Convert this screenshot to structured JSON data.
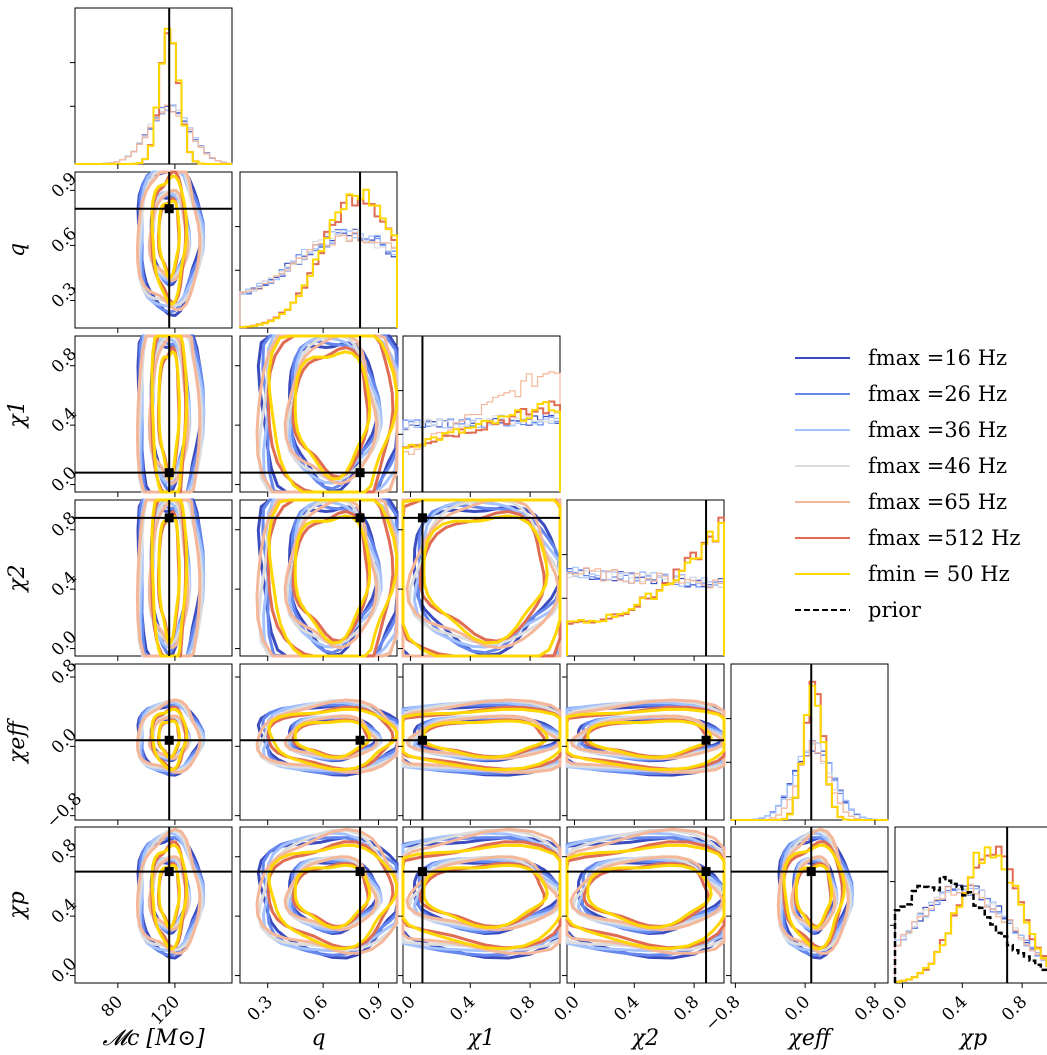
{
  "chart_data": {
    "type": "corner",
    "params": [
      {
        "key": "Mc",
        "label": "𝓜c [M⊙]",
        "range": [
          50,
          160
        ],
        "ticks": [
          80,
          120
        ],
        "truth": 116
      },
      {
        "key": "q",
        "label": "q",
        "range": [
          0.15,
          1.0
        ],
        "ticks": [
          0.3,
          0.6,
          0.9
        ],
        "truth": 0.8
      },
      {
        "key": "chi1",
        "label": "χ1",
        "range": [
          -0.05,
          1.0
        ],
        "ticks": [
          0.0,
          0.4,
          0.8
        ],
        "truth": 0.08
      },
      {
        "key": "chi2",
        "label": "χ2",
        "range": [
          -0.05,
          1.0
        ],
        "ticks": [
          0.0,
          0.4,
          0.8
        ],
        "truth": 0.88
      },
      {
        "key": "chieff",
        "label": "χeff",
        "range": [
          -0.85,
          0.95
        ],
        "ticks": [
          -0.8,
          0.0,
          0.8
        ],
        "truth": 0.07
      },
      {
        "key": "chip",
        "label": "χp",
        "range": [
          -0.05,
          1.0
        ],
        "ticks": [
          0.0,
          0.4,
          0.8
        ],
        "truth": 0.7
      }
    ],
    "series": [
      {
        "name": "fmax =16 Hz",
        "color": "#3a4cc0"
      },
      {
        "name": "fmax =26 Hz",
        "color": "#6688ee"
      },
      {
        "name": "fmax =36 Hz",
        "color": "#a3c2fe"
      },
      {
        "name": "fmax =46 Hz",
        "color": "#dcdcdc"
      },
      {
        "name": "fmax =65 Hz",
        "color": "#f4b799"
      },
      {
        "name": "fmax =512 Hz",
        "color": "#e06c54"
      },
      {
        "name": "fmin = 50 Hz",
        "color": "#ffd700"
      },
      {
        "name": "prior",
        "color": "#000000",
        "dashed": true
      }
    ],
    "tick_text": {
      "Mc": [
        "80",
        "120"
      ],
      "q": [
        "0.3",
        "0.6",
        "0.9"
      ],
      "chi1": [
        "0.0",
        "0.4",
        "0.8"
      ],
      "chi2": [
        "0.0",
        "0.4",
        "0.8"
      ],
      "chieff": [
        "−0.8",
        "0.0",
        "0.8"
      ],
      "chip": [
        "0.0",
        "0.4",
        "0.8"
      ]
    },
    "legend_placement": "upper-right",
    "grid": false
  }
}
